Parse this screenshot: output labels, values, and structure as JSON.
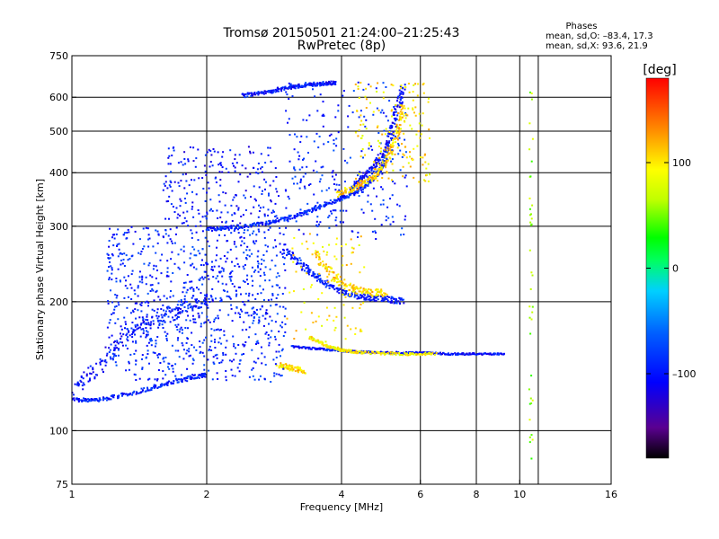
{
  "header": {
    "title_line1": "Tromsø 20150501 21:24:00–21:25:43",
    "title_line2": "RwPretec (8p)",
    "stats_title": "Phases",
    "stats_line1": "mean, sd,O: –83.4, 17.3",
    "stats_line2": "mean, sd,X:  93.6, 21.9"
  },
  "colorbar": {
    "label": "[deg]",
    "ticks": [
      {
        "value": 100,
        "label": "100"
      },
      {
        "value": 0,
        "label": "0"
      },
      {
        "value": -100,
        "label": "–100"
      }
    ],
    "range": [
      -180,
      180
    ]
  },
  "chart_data": {
    "type": "scatter",
    "title": "Tromsø 20150501 21:24:00–21:25:43",
    "subtitle": "RwPretec (8p)",
    "xlabel": "Frequency [MHz]",
    "ylabel": "Stationary phase Virtual Height [km]",
    "xscale": "log",
    "yscale": "log",
    "xlim": [
      1,
      16
    ],
    "ylim": [
      75,
      750
    ],
    "grid": true,
    "x_ticks": [
      {
        "value": 1,
        "label": "1"
      },
      {
        "value": 2,
        "label": "2"
      },
      {
        "value": 4,
        "label": "4"
      },
      {
        "value": 6,
        "label": "6"
      },
      {
        "value": 8,
        "label": "8"
      },
      {
        "value": 10,
        "label": "10"
      },
      {
        "value": 16,
        "label": "16"
      }
    ],
    "x_grid": [
      1,
      2,
      4,
      6,
      8,
      10,
      11,
      16
    ],
    "y_ticks": [
      {
        "value": 75,
        "label": "75"
      },
      {
        "value": 100,
        "label": "100"
      },
      {
        "value": 200,
        "label": "200"
      },
      {
        "value": 300,
        "label": "300"
      },
      {
        "value": 400,
        "label": "400"
      },
      {
        "value": 500,
        "label": "500"
      },
      {
        "value": 600,
        "label": "600"
      },
      {
        "value": 750,
        "label": "750"
      }
    ],
    "y_grid": [
      100,
      200,
      300,
      400,
      500,
      600
    ],
    "color_scale": "rainbow phase (deg), -180 black/purple to 180 red",
    "traces": [
      {
        "kind": "E-region O trace",
        "f": [
          1.0,
          1.15,
          1.35,
          1.6,
          1.85,
          2.0
        ],
        "h": [
          118,
          118,
          122,
          128,
          133,
          135
        ],
        "phase": -95,
        "spread": 0.02
      },
      {
        "kind": "E-region rising trace",
        "f": [
          1.0,
          1.15,
          1.3,
          1.55,
          1.8,
          2.05
        ],
        "h": [
          125,
          140,
          165,
          180,
          195,
          205
        ],
        "phase": -100,
        "spread": 0.06
      },
      {
        "kind": "F1 O trace",
        "f": [
          2.0,
          2.3,
          2.7,
          3.1,
          3.5,
          3.9,
          4.3,
          4.7,
          5.0
        ],
        "h": [
          295,
          298,
          305,
          315,
          330,
          345,
          360,
          385,
          420
        ],
        "phase": -90,
        "spread": 0.02
      },
      {
        "kind": "F2 O trace",
        "f": [
          4.2,
          4.5,
          4.8,
          5.1,
          5.3,
          5.5
        ],
        "h": [
          370,
          390,
          420,
          470,
          550,
          640
        ],
        "phase": -105,
        "spread": 0.03
      },
      {
        "kind": "F2 X trace",
        "f": [
          3.9,
          4.3,
          4.7,
          5.0,
          5.3,
          5.5
        ],
        "h": [
          355,
          370,
          390,
          420,
          480,
          580
        ],
        "phase": 110,
        "spread": 0.03
      },
      {
        "kind": "sporadic E 150 km O",
        "f": [
          3.1,
          3.6,
          4.2,
          5.0,
          6.0,
          7.0,
          8.0,
          9.3
        ],
        "h": [
          157,
          155,
          153,
          152,
          152,
          151,
          151,
          151
        ],
        "phase": -100,
        "spread": 0.01
      },
      {
        "kind": "sporadic E 150 km X",
        "f": [
          3.4,
          3.7,
          4.0,
          4.5,
          5.5,
          6.5
        ],
        "h": [
          165,
          158,
          154,
          152,
          151,
          151
        ],
        "phase": 95,
        "spread": 0.015
      },
      {
        "kind": "multiple echo 300 km",
        "f": [
          3.0,
          3.3,
          3.6,
          4.0,
          4.5,
          5.0,
          5.5
        ],
        "h": [
          265,
          240,
          225,
          210,
          205,
          203,
          200
        ],
        "phase": -95,
        "spread": 0.03
      },
      {
        "kind": "multiple echo 300 km X",
        "f": [
          3.5,
          3.8,
          4.2,
          4.6,
          5.0
        ],
        "h": [
          260,
          230,
          215,
          210,
          210
        ],
        "phase": 105,
        "spread": 0.04
      },
      {
        "kind": "top echoes 600 km",
        "f": [
          2.4,
          2.7,
          3.0,
          3.3,
          3.6,
          3.9
        ],
        "h": [
          605,
          615,
          630,
          640,
          645,
          648
        ],
        "phase": -100,
        "spread": 0.02
      },
      {
        "kind": "X E-region 140 km",
        "f": [
          2.9,
          3.1,
          3.3
        ],
        "h": [
          142,
          140,
          138
        ],
        "phase": 105,
        "spread": 0.03
      }
    ],
    "scatter_clouds": [
      {
        "f_range": [
          1.2,
          3.0
        ],
        "h_range": [
          130,
          300
        ],
        "phase": -90,
        "n": 900
      },
      {
        "f_range": [
          1.6,
          2.9
        ],
        "h_range": [
          300,
          460
        ],
        "phase": -100,
        "n": 240
      },
      {
        "f_range": [
          3.0,
          5.6
        ],
        "h_range": [
          280,
          650
        ],
        "phase": -90,
        "n": 260
      },
      {
        "f_range": [
          3.0,
          4.6
        ],
        "h_range": [
          160,
          290
        ],
        "phase": 100,
        "n": 90
      },
      {
        "f_range": [
          4.3,
          6.3
        ],
        "h_range": [
          380,
          650
        ],
        "phase": 100,
        "n": 160
      },
      {
        "f_range": [
          10.5,
          10.7
        ],
        "h_range": [
          80,
          650
        ],
        "phase": 60,
        "n": 40
      }
    ]
  }
}
